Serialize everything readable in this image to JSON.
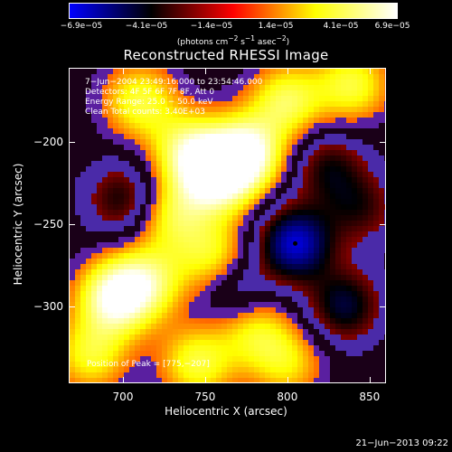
{
  "colorbar": {
    "ticks": [
      "−6.9e−05",
      "−4.1e−05",
      "−1.4e−05",
      "1.4e−05",
      "4.1e−05",
      "6.9e−05"
    ],
    "units_prefix": "(photons cm",
    "units_sup1": "−2",
    "units_mid1": " s",
    "units_sup2": "−1",
    "units_mid2": " asec",
    "units_sup3": "−2",
    "units_suffix": ")"
  },
  "title": "Reconstructed RHESSI Image",
  "info": {
    "time_range": "7−Jun−2004 23:49:16.000 to 23:54:46.000",
    "detectors": "Detectors: 4F 5F 6F 7F 8F, Att 0",
    "energy": "Energy Range: 25.0 − 50.0 keV",
    "clean": "Clean     Total counts: 3.40E+03"
  },
  "peak_label": "Position of Peak = [775,−207]",
  "axes": {
    "x_ticks": [
      "700",
      "750",
      "800",
      "850"
    ],
    "y_ticks": [
      "−200",
      "−250",
      "−300"
    ],
    "x_label": "Heliocentric X (arcsec)",
    "y_label": "Heliocentric Y (arcsec)"
  },
  "timestamp": "21−Jun−2013 09:22",
  "chart_data": {
    "type": "heatmap",
    "xlim": [
      667,
      860
    ],
    "ylim": [
      -347,
      -155
    ],
    "peak": [
      775,
      -207
    ],
    "colormap": [
      "#0000ff",
      "#000000",
      "#ff0000",
      "#ffff00",
      "#ffffff"
    ],
    "blobs": [
      {
        "x": 775,
        "y": -207,
        "v": 1.0
      },
      {
        "x": 757,
        "y": -222,
        "v": 0.9
      },
      {
        "x": 740,
        "y": -205,
        "v": 0.7
      },
      {
        "x": 710,
        "y": -175,
        "v": 0.6
      },
      {
        "x": 695,
        "y": -295,
        "v": 0.95
      },
      {
        "x": 715,
        "y": -285,
        "v": 0.6
      },
      {
        "x": 730,
        "y": -245,
        "v": 0.55
      },
      {
        "x": 755,
        "y": -270,
        "v": 0.55
      },
      {
        "x": 780,
        "y": -315,
        "v": 0.5
      },
      {
        "x": 745,
        "y": -335,
        "v": 0.6
      },
      {
        "x": 800,
        "y": -175,
        "v": 0.65
      },
      {
        "x": 840,
        "y": -165,
        "v": 0.6
      },
      {
        "x": 680,
        "y": -330,
        "v": 0.55
      },
      {
        "x": 800,
        "y": -335,
        "v": 0.45
      },
      {
        "x": 805,
        "y": -262,
        "v": -0.9
      },
      {
        "x": 835,
        "y": -300,
        "v": -0.6
      },
      {
        "x": 845,
        "y": -240,
        "v": -0.4
      },
      {
        "x": 700,
        "y": -235,
        "v": -0.5
      },
      {
        "x": 825,
        "y": -215,
        "v": -0.45
      },
      {
        "x": 770,
        "y": -290,
        "v": -0.35
      }
    ]
  }
}
